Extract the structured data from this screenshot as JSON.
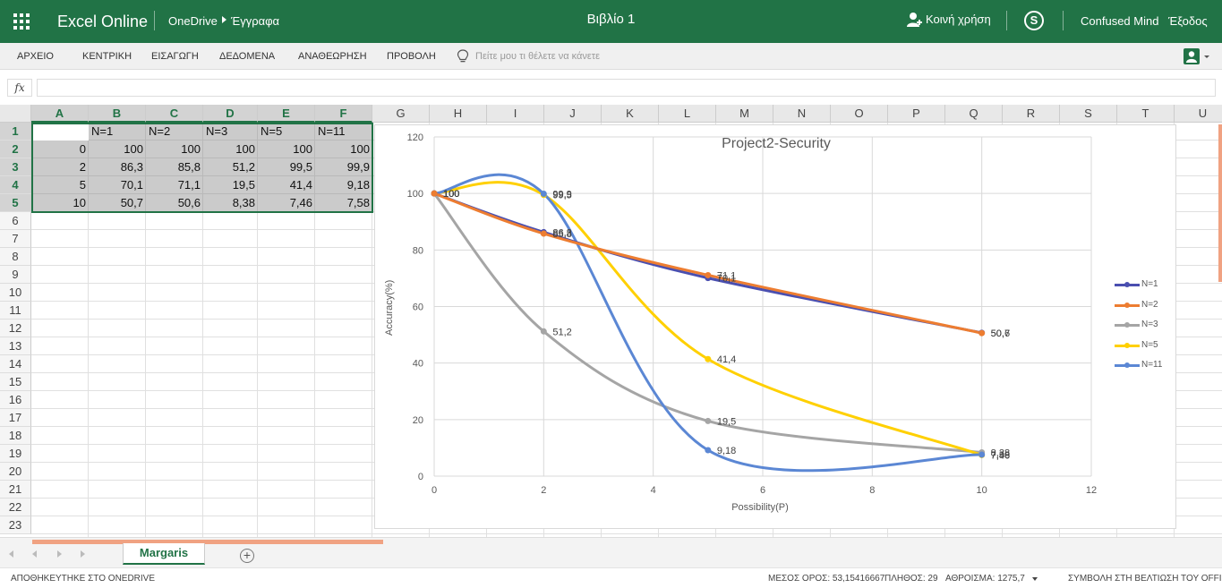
{
  "header": {
    "app_name": "Excel Online",
    "breadcrumb_root": "OneDrive",
    "breadcrumb_folder": "Έγγραφα",
    "document_title": "Βιβλίο 1",
    "share_label": "Κοινή χρήση",
    "skype_icon": "skype-icon",
    "user_name": "Confused Mind",
    "signout_label": "Έξοδος"
  },
  "ribbon": {
    "tabs": [
      "ΑΡΧΕΙΟ",
      "ΚΕΝΤΡΙΚΗ",
      "ΕΙΣΑΓΩΓΗ",
      "ΔΕΔΟΜΕΝΑ",
      "ΑΝΑΘΕΩΡΗΣΗ",
      "ΠΡΟΒΟΛΗ"
    ],
    "tellme_placeholder": "Πείτε μου τι θέλετε να κάνετε"
  },
  "formula_bar": {
    "fx_label": "fx",
    "value": ""
  },
  "grid": {
    "columns": [
      "A",
      "B",
      "C",
      "D",
      "E",
      "F",
      "G",
      "H",
      "I",
      "J",
      "K",
      "L",
      "M",
      "N",
      "O",
      "P",
      "Q",
      "R",
      "S",
      "T",
      "U"
    ],
    "rows": [
      "1",
      "2",
      "3",
      "4",
      "5",
      "6",
      "7",
      "8",
      "9",
      "10",
      "11",
      "12",
      "13",
      "14",
      "15",
      "16",
      "17",
      "18",
      "19",
      "20",
      "21",
      "22",
      "23"
    ],
    "cells": [
      [
        "",
        "N=1",
        "N=2",
        "N=3",
        "N=5",
        "N=11"
      ],
      [
        "0",
        "100",
        "100",
        "100",
        "100",
        "100"
      ],
      [
        "2",
        "86,3",
        "85,8",
        "51,2",
        "99,5",
        "99,9"
      ],
      [
        "5",
        "70,1",
        "71,1",
        "19,5",
        "41,4",
        "9,18"
      ],
      [
        "10",
        "50,7",
        "50,6",
        "8,38",
        "7,46",
        "7,58"
      ]
    ]
  },
  "chart_data": {
    "type": "line",
    "title": "Project2-Security",
    "xlabel": "Possibility(P)",
    "ylabel": "Accuracy(%)",
    "x": [
      0,
      2,
      5,
      10
    ],
    "xlim": [
      0,
      12
    ],
    "ylim": [
      0,
      120
    ],
    "xticks": [
      "0",
      "2",
      "4",
      "6",
      "8",
      "10",
      "12"
    ],
    "yticks": [
      "0",
      "20",
      "40",
      "60",
      "80",
      "100",
      "120"
    ],
    "grid": true,
    "smooth": true,
    "legend_position": "right",
    "series": [
      {
        "name": "N=1",
        "color": "#4a4fb0",
        "values": [
          100,
          86.3,
          70.1,
          50.7
        ],
        "labels": [
          "100",
          "86,3",
          "70,1",
          "50,7"
        ]
      },
      {
        "name": "N=2",
        "color": "#ed7d31",
        "values": [
          100,
          85.8,
          71.1,
          50.6
        ],
        "labels": [
          "100",
          "85,8",
          "71,1",
          "50,6"
        ]
      },
      {
        "name": "N=3",
        "color": "#a5a5a5",
        "values": [
          100,
          51.2,
          19.5,
          8.38
        ],
        "labels": [
          "100",
          "51,2",
          "19,5",
          "8,38"
        ]
      },
      {
        "name": "N=5",
        "color": "#ffd000",
        "values": [
          100,
          99.5,
          41.4,
          7.46
        ],
        "labels": [
          "100",
          "99,5",
          "41,4",
          "7,46"
        ]
      },
      {
        "name": "N=11",
        "color": "#5b87d4",
        "values": [
          100,
          99.9,
          9.18,
          7.58
        ],
        "labels": [
          "100",
          "99,9",
          "9,18",
          "7,58"
        ]
      }
    ]
  },
  "sheets": {
    "active": "Margaris"
  },
  "status_bar": {
    "saved": "ΑΠΟΘΗΚΕΥΤΗΚΕ ΣΤΟ ONEDRIVE",
    "average": "ΜΕΣΟΣ ΟΡΟΣ: 53,15416667",
    "count": "ΠΛΗΘΟΣ: 29",
    "sum": "ΑΘΡΟΙΣΜΑ: 1275,7",
    "improve": "ΣΥΜΒΟΛΗ ΣΤΗ ΒΕΛΤΙΩΣΗ ΤΟΥ OFFICE"
  }
}
